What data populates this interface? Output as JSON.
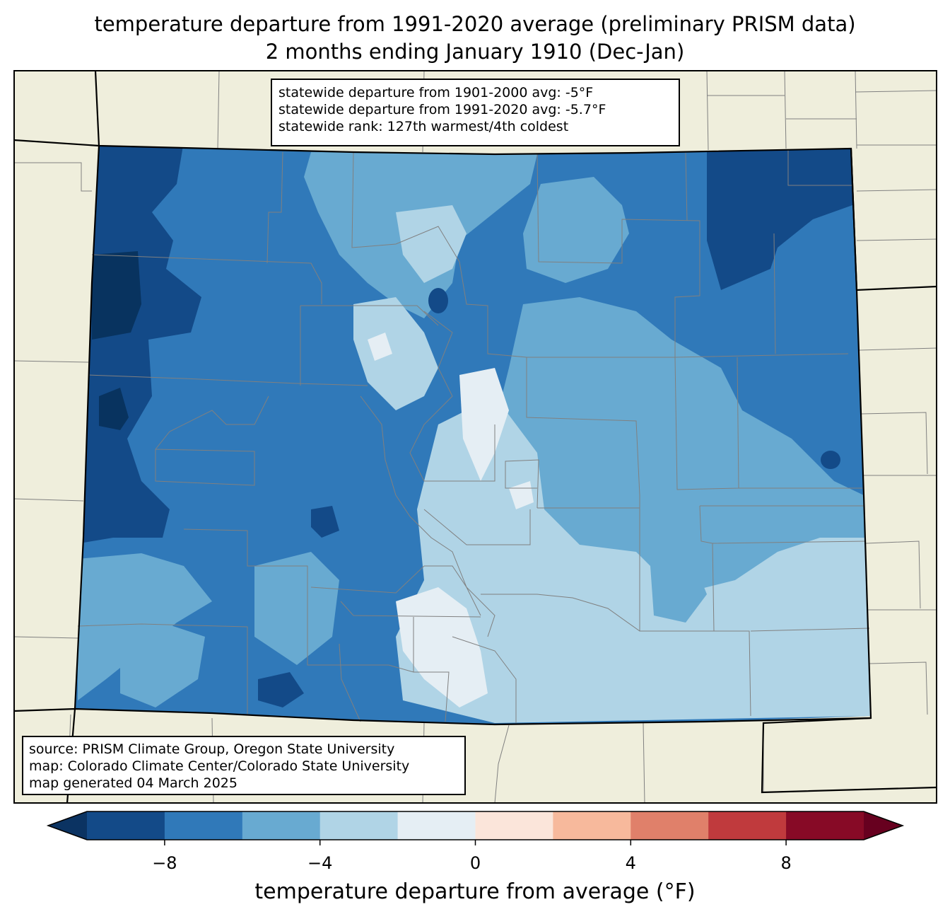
{
  "title": {
    "line1": "temperature departure from 1991-2020 average (preliminary PRISM data)",
    "line2": "2 months ending January 1910 (Dec-Jan)"
  },
  "stats": {
    "line1": "statewide departure from 1901-2000 avg: -5°F",
    "line2": "statewide departure from 1991-2020 avg: -5.7°F",
    "line3": "statewide rank: 127th warmest/4th coldest"
  },
  "source": {
    "line1": "source: PRISM Climate Group, Oregon State University",
    "line2": "map: Colorado Climate Center/Colorado State University",
    "line3": "map generated 04 March 2025"
  },
  "colorbar": {
    "label": "temperature departure from average (°F)",
    "ticks": [
      "−8",
      "−4",
      "0",
      "4",
      "8"
    ],
    "tick_values": [
      -8,
      -4,
      0,
      4,
      8
    ],
    "range": [
      -10,
      10
    ],
    "bins": [
      {
        "from": -10,
        "to": -8,
        "color": "#134a88"
      },
      {
        "from": -8,
        "to": -6,
        "color": "#3079b9"
      },
      {
        "from": -6,
        "to": -4,
        "color": "#68aad1"
      },
      {
        "from": -4,
        "to": -2,
        "color": "#b0d4e6"
      },
      {
        "from": -2,
        "to": 0,
        "color": "#e5eef4"
      },
      {
        "from": 0,
        "to": 2,
        "color": "#fbe5da"
      },
      {
        "from": 2,
        "to": 4,
        "color": "#f7b99c"
      },
      {
        "from": 4,
        "to": 6,
        "color": "#e0806a"
      },
      {
        "from": 6,
        "to": 8,
        "color": "#c03a3d"
      },
      {
        "from": 8,
        "to": 10,
        "color": "#870a26"
      }
    ],
    "under_color": "#0b3362",
    "over_color": "#67001f"
  },
  "colors": {
    "land": "#efeedc",
    "county_line": "#808080",
    "state_line": "#000000",
    "darkest": "#08335f"
  }
}
